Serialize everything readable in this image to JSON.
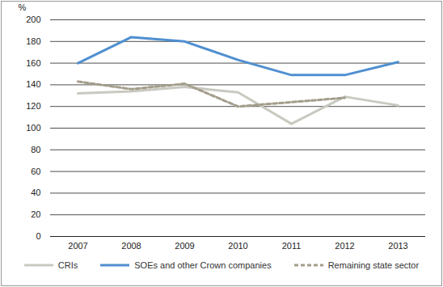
{
  "chart_data": {
    "type": "line",
    "categories": [
      "2007",
      "2008",
      "2009",
      "2010",
      "2011",
      "2012",
      "2013"
    ],
    "series": [
      {
        "name": "CRIs",
        "color": "#c9c9c1",
        "line_style": "solid",
        "values": [
          132,
          134,
          138,
          133,
          104,
          129,
          121
        ]
      },
      {
        "name": "SOEs and other Crown companies",
        "color": "#4f8fd0",
        "line_style": "solid",
        "values": [
          160,
          184,
          180,
          163,
          149,
          149,
          161
        ]
      },
      {
        "name": "Remaining state sector",
        "color": "#a39d8b",
        "line_style": "dashed",
        "values": [
          143,
          136,
          141,
          120,
          124,
          128,
          null
        ]
      }
    ],
    "y_label": "%",
    "ylim": [
      0,
      200
    ],
    "yticks": [
      0,
      20,
      40,
      60,
      80,
      100,
      120,
      140,
      160,
      180,
      200
    ],
    "grid": true,
    "legend": "bottom"
  }
}
